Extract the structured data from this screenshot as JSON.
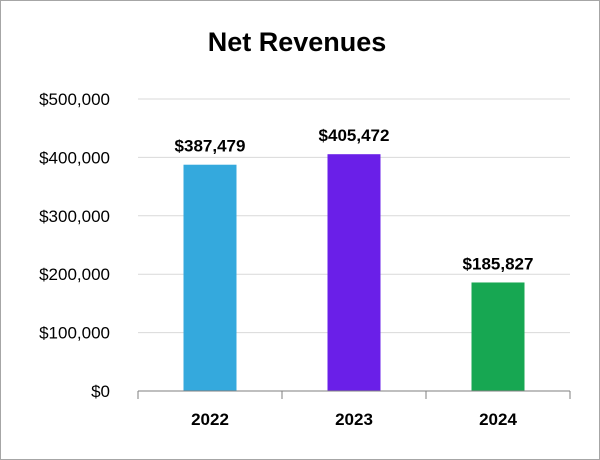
{
  "chart_data": {
    "type": "bar",
    "title": "Net Revenues",
    "categories": [
      "2022",
      "2023",
      "2024"
    ],
    "values": [
      387479,
      405472,
      185827
    ],
    "data_labels": [
      "$387,479",
      "$405,472",
      "$185,827"
    ],
    "bar_colors": [
      "#34a9dd",
      "#6a1fe8",
      "#17a752"
    ],
    "ylim": [
      0,
      500000
    ],
    "yticks": [
      0,
      100000,
      200000,
      300000,
      400000,
      500000
    ],
    "ytick_labels": [
      "$0",
      "$100,000",
      "$200,000",
      "$300,000",
      "$400,000",
      "$500,000"
    ],
    "xlabel": "",
    "ylabel": "",
    "grid": true,
    "legend": "none"
  }
}
